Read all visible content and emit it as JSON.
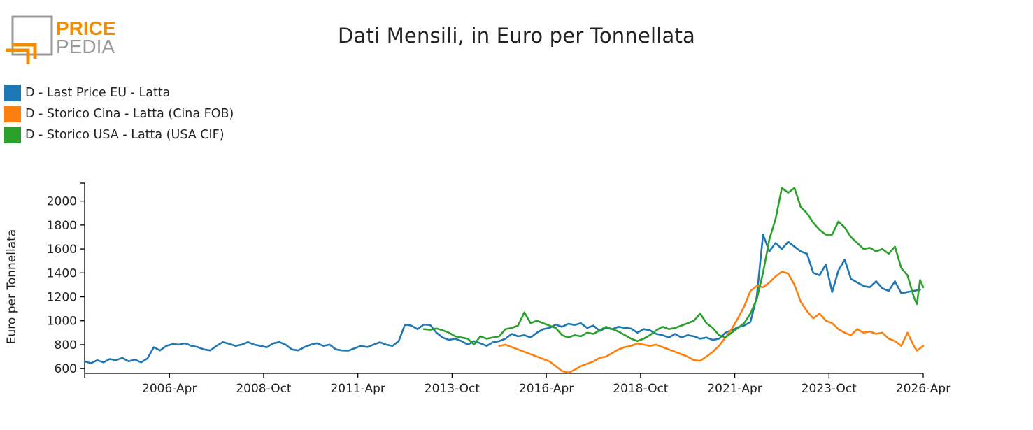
{
  "header": {
    "title": "Dati Mensili, in Euro per Tonnellata"
  },
  "logo": {
    "line1": "PRICE",
    "line2": "PEDIA",
    "colors": {
      "orange": "#F18D00",
      "gray": "#999999"
    }
  },
  "chart_data": {
    "type": "line",
    "title": "Dati Mensili, in Euro per Tonnellata",
    "xlabel": "",
    "ylabel": "Euro per Tonnellata",
    "x_range": [
      "2004-01",
      "2026-04"
    ],
    "ylim": [
      560,
      2150
    ],
    "grid": false,
    "legend_position": "top-left",
    "x_ticks": [
      "2006-Apr",
      "2008-Oct",
      "2011-Apr",
      "2013-Oct",
      "2016-Apr",
      "2018-Oct",
      "2021-Apr",
      "2023-Oct",
      "2026-Apr"
    ],
    "y_ticks": [
      600,
      800,
      1000,
      1200,
      1400,
      1600,
      1800,
      2000
    ],
    "series": [
      {
        "name": "D - Last Price EU - Latta",
        "color": "#1F77B4",
        "points": [
          [
            "2004-01",
            660
          ],
          [
            "2004-03",
            645
          ],
          [
            "2004-05",
            670
          ],
          [
            "2004-07",
            652
          ],
          [
            "2004-09",
            680
          ],
          [
            "2004-11",
            670
          ],
          [
            "2005-01",
            690
          ],
          [
            "2005-03",
            660
          ],
          [
            "2005-05",
            675
          ],
          [
            "2005-07",
            652
          ],
          [
            "2005-09",
            685
          ],
          [
            "2005-11",
            778
          ],
          [
            "2006-01",
            752
          ],
          [
            "2006-03",
            790
          ],
          [
            "2006-05",
            805
          ],
          [
            "2006-07",
            800
          ],
          [
            "2006-09",
            812
          ],
          [
            "2006-11",
            790
          ],
          [
            "2007-01",
            780
          ],
          [
            "2007-03",
            760
          ],
          [
            "2007-05",
            752
          ],
          [
            "2007-07",
            790
          ],
          [
            "2007-09",
            822
          ],
          [
            "2007-11",
            808
          ],
          [
            "2008-01",
            790
          ],
          [
            "2008-03",
            800
          ],
          [
            "2008-05",
            822
          ],
          [
            "2008-07",
            800
          ],
          [
            "2008-09",
            790
          ],
          [
            "2008-11",
            778
          ],
          [
            "2009-01",
            810
          ],
          [
            "2009-03",
            822
          ],
          [
            "2009-05",
            800
          ],
          [
            "2009-07",
            760
          ],
          [
            "2009-09",
            752
          ],
          [
            "2009-11",
            780
          ],
          [
            "2010-01",
            800
          ],
          [
            "2010-03",
            812
          ],
          [
            "2010-05",
            790
          ],
          [
            "2010-07",
            800
          ],
          [
            "2010-09",
            760
          ],
          [
            "2010-11",
            752
          ],
          [
            "2011-01",
            750
          ],
          [
            "2011-03",
            770
          ],
          [
            "2011-05",
            790
          ],
          [
            "2011-07",
            780
          ],
          [
            "2011-09",
            800
          ],
          [
            "2011-11",
            820
          ],
          [
            "2012-01",
            800
          ],
          [
            "2012-03",
            790
          ],
          [
            "2012-05",
            830
          ],
          [
            "2012-07",
            968
          ],
          [
            "2012-09",
            960
          ],
          [
            "2012-11",
            930
          ],
          [
            "2013-01",
            968
          ],
          [
            "2013-03",
            965
          ],
          [
            "2013-05",
            900
          ],
          [
            "2013-07",
            860
          ],
          [
            "2013-09",
            840
          ],
          [
            "2013-11",
            850
          ],
          [
            "2014-01",
            830
          ],
          [
            "2014-03",
            800
          ],
          [
            "2014-05",
            830
          ],
          [
            "2014-07",
            812
          ],
          [
            "2014-09",
            790
          ],
          [
            "2014-11",
            820
          ],
          [
            "2015-01",
            830
          ],
          [
            "2015-03",
            850
          ],
          [
            "2015-05",
            890
          ],
          [
            "2015-07",
            870
          ],
          [
            "2015-09",
            880
          ],
          [
            "2015-11",
            860
          ],
          [
            "2016-01",
            900
          ],
          [
            "2016-03",
            930
          ],
          [
            "2016-05",
            940
          ],
          [
            "2016-07",
            968
          ],
          [
            "2016-09",
            950
          ],
          [
            "2016-11",
            975
          ],
          [
            "2017-01",
            965
          ],
          [
            "2017-03",
            980
          ],
          [
            "2017-05",
            940
          ],
          [
            "2017-07",
            960
          ],
          [
            "2017-09",
            915
          ],
          [
            "2017-11",
            940
          ],
          [
            "2018-01",
            930
          ],
          [
            "2018-03",
            950
          ],
          [
            "2018-05",
            940
          ],
          [
            "2018-07",
            935
          ],
          [
            "2018-09",
            900
          ],
          [
            "2018-11",
            930
          ],
          [
            "2019-01",
            920
          ],
          [
            "2019-03",
            890
          ],
          [
            "2019-05",
            880
          ],
          [
            "2019-07",
            860
          ],
          [
            "2019-09",
            890
          ],
          [
            "2019-11",
            860
          ],
          [
            "2020-01",
            880
          ],
          [
            "2020-03",
            870
          ],
          [
            "2020-05",
            850
          ],
          [
            "2020-07",
            860
          ],
          [
            "2020-09",
            840
          ],
          [
            "2020-11",
            850
          ],
          [
            "2021-01",
            900
          ],
          [
            "2021-03",
            920
          ],
          [
            "2021-05",
            945
          ],
          [
            "2021-07",
            960
          ],
          [
            "2021-09",
            990
          ],
          [
            "2021-11",
            1200
          ],
          [
            "2022-01",
            1720
          ],
          [
            "2022-03",
            1580
          ],
          [
            "2022-05",
            1650
          ],
          [
            "2022-07",
            1600
          ],
          [
            "2022-09",
            1660
          ],
          [
            "2022-11",
            1620
          ],
          [
            "2023-01",
            1580
          ],
          [
            "2023-03",
            1560
          ],
          [
            "2023-05",
            1400
          ],
          [
            "2023-07",
            1380
          ],
          [
            "2023-09",
            1470
          ],
          [
            "2023-11",
            1240
          ],
          [
            "2024-01",
            1420
          ],
          [
            "2024-03",
            1510
          ],
          [
            "2024-05",
            1350
          ],
          [
            "2024-07",
            1320
          ],
          [
            "2024-09",
            1290
          ],
          [
            "2024-11",
            1280
          ],
          [
            "2025-01",
            1330
          ],
          [
            "2025-03",
            1270
          ],
          [
            "2025-05",
            1250
          ],
          [
            "2025-07",
            1330
          ],
          [
            "2025-09",
            1230
          ],
          [
            "2025-11",
            1240
          ],
          [
            "2026-01",
            1250
          ],
          [
            "2026-03",
            1260
          ]
        ]
      },
      {
        "name": "D - Storico Cina - Latta (Cina FOB)",
        "color": "#FF7F0E",
        "points": [
          [
            "2015-01",
            790
          ],
          [
            "2015-03",
            800
          ],
          [
            "2015-05",
            780
          ],
          [
            "2015-07",
            760
          ],
          [
            "2015-09",
            740
          ],
          [
            "2015-11",
            720
          ],
          [
            "2016-01",
            700
          ],
          [
            "2016-03",
            680
          ],
          [
            "2016-05",
            660
          ],
          [
            "2016-07",
            620
          ],
          [
            "2016-09",
            580
          ],
          [
            "2016-11",
            565
          ],
          [
            "2017-01",
            590
          ],
          [
            "2017-03",
            620
          ],
          [
            "2017-05",
            640
          ],
          [
            "2017-07",
            660
          ],
          [
            "2017-09",
            690
          ],
          [
            "2017-11",
            700
          ],
          [
            "2018-01",
            730
          ],
          [
            "2018-03",
            760
          ],
          [
            "2018-05",
            780
          ],
          [
            "2018-07",
            790
          ],
          [
            "2018-09",
            810
          ],
          [
            "2018-11",
            800
          ],
          [
            "2019-01",
            790
          ],
          [
            "2019-03",
            800
          ],
          [
            "2019-05",
            780
          ],
          [
            "2019-07",
            760
          ],
          [
            "2019-09",
            740
          ],
          [
            "2019-11",
            720
          ],
          [
            "2020-01",
            700
          ],
          [
            "2020-03",
            670
          ],
          [
            "2020-05",
            665
          ],
          [
            "2020-07",
            700
          ],
          [
            "2020-09",
            740
          ],
          [
            "2020-11",
            790
          ],
          [
            "2021-01",
            860
          ],
          [
            "2021-03",
            930
          ],
          [
            "2021-05",
            1020
          ],
          [
            "2021-07",
            1120
          ],
          [
            "2021-09",
            1250
          ],
          [
            "2021-11",
            1290
          ],
          [
            "2022-01",
            1280
          ],
          [
            "2022-03",
            1320
          ],
          [
            "2022-05",
            1370
          ],
          [
            "2022-07",
            1410
          ],
          [
            "2022-09",
            1395
          ],
          [
            "2022-11",
            1300
          ],
          [
            "2023-01",
            1160
          ],
          [
            "2023-03",
            1080
          ],
          [
            "2023-05",
            1020
          ],
          [
            "2023-07",
            1060
          ],
          [
            "2023-09",
            1000
          ],
          [
            "2023-11",
            980
          ],
          [
            "2024-01",
            930
          ],
          [
            "2024-03",
            900
          ],
          [
            "2024-05",
            880
          ],
          [
            "2024-07",
            930
          ],
          [
            "2024-09",
            900
          ],
          [
            "2024-11",
            910
          ],
          [
            "2025-01",
            890
          ],
          [
            "2025-03",
            900
          ],
          [
            "2025-05",
            850
          ],
          [
            "2025-07",
            830
          ],
          [
            "2025-09",
            790
          ],
          [
            "2025-11",
            900
          ],
          [
            "2026-01",
            790
          ],
          [
            "2026-02",
            750
          ],
          [
            "2026-03",
            770
          ],
          [
            "2026-04",
            790
          ]
        ]
      },
      {
        "name": "D - Storico USA - Latta (USA CIF)",
        "color": "#2CA02C",
        "points": [
          [
            "2013-01",
            930
          ],
          [
            "2013-03",
            925
          ],
          [
            "2013-05",
            935
          ],
          [
            "2013-07",
            920
          ],
          [
            "2013-09",
            900
          ],
          [
            "2013-11",
            870
          ],
          [
            "2014-01",
            860
          ],
          [
            "2014-03",
            850
          ],
          [
            "2014-05",
            800
          ],
          [
            "2014-07",
            870
          ],
          [
            "2014-09",
            850
          ],
          [
            "2014-11",
            860
          ],
          [
            "2015-01",
            870
          ],
          [
            "2015-03",
            930
          ],
          [
            "2015-05",
            940
          ],
          [
            "2015-07",
            960
          ],
          [
            "2015-09",
            1070
          ],
          [
            "2015-11",
            980
          ],
          [
            "2016-01",
            1000
          ],
          [
            "2016-03",
            980
          ],
          [
            "2016-05",
            960
          ],
          [
            "2016-07",
            940
          ],
          [
            "2016-09",
            880
          ],
          [
            "2016-11",
            860
          ],
          [
            "2017-01",
            880
          ],
          [
            "2017-03",
            870
          ],
          [
            "2017-05",
            900
          ],
          [
            "2017-07",
            890
          ],
          [
            "2017-09",
            920
          ],
          [
            "2017-11",
            950
          ],
          [
            "2018-01",
            930
          ],
          [
            "2018-03",
            910
          ],
          [
            "2018-05",
            880
          ],
          [
            "2018-07",
            850
          ],
          [
            "2018-09",
            830
          ],
          [
            "2018-11",
            850
          ],
          [
            "2019-01",
            880
          ],
          [
            "2019-03",
            920
          ],
          [
            "2019-05",
            950
          ],
          [
            "2019-07",
            930
          ],
          [
            "2019-09",
            940
          ],
          [
            "2019-11",
            960
          ],
          [
            "2020-01",
            980
          ],
          [
            "2020-03",
            1000
          ],
          [
            "2020-05",
            1060
          ],
          [
            "2020-07",
            980
          ],
          [
            "2020-09",
            940
          ],
          [
            "2020-11",
            880
          ],
          [
            "2021-01",
            860
          ],
          [
            "2021-03",
            900
          ],
          [
            "2021-05",
            940
          ],
          [
            "2021-07",
            980
          ],
          [
            "2021-09",
            1060
          ],
          [
            "2021-11",
            1180
          ],
          [
            "2022-01",
            1400
          ],
          [
            "2022-03",
            1680
          ],
          [
            "2022-05",
            1850
          ],
          [
            "2022-07",
            2110
          ],
          [
            "2022-09",
            2070
          ],
          [
            "2022-11",
            2110
          ],
          [
            "2023-01",
            1950
          ],
          [
            "2023-03",
            1900
          ],
          [
            "2023-05",
            1820
          ],
          [
            "2023-07",
            1760
          ],
          [
            "2023-09",
            1720
          ],
          [
            "2023-11",
            1720
          ],
          [
            "2024-01",
            1830
          ],
          [
            "2024-03",
            1780
          ],
          [
            "2024-05",
            1700
          ],
          [
            "2024-07",
            1650
          ],
          [
            "2024-09",
            1600
          ],
          [
            "2024-11",
            1610
          ],
          [
            "2025-01",
            1580
          ],
          [
            "2025-03",
            1600
          ],
          [
            "2025-05",
            1560
          ],
          [
            "2025-07",
            1620
          ],
          [
            "2025-09",
            1440
          ],
          [
            "2025-11",
            1380
          ],
          [
            "2026-01",
            1200
          ],
          [
            "2026-02",
            1140
          ],
          [
            "2026-03",
            1340
          ],
          [
            "2026-04",
            1280
          ]
        ]
      }
    ]
  }
}
